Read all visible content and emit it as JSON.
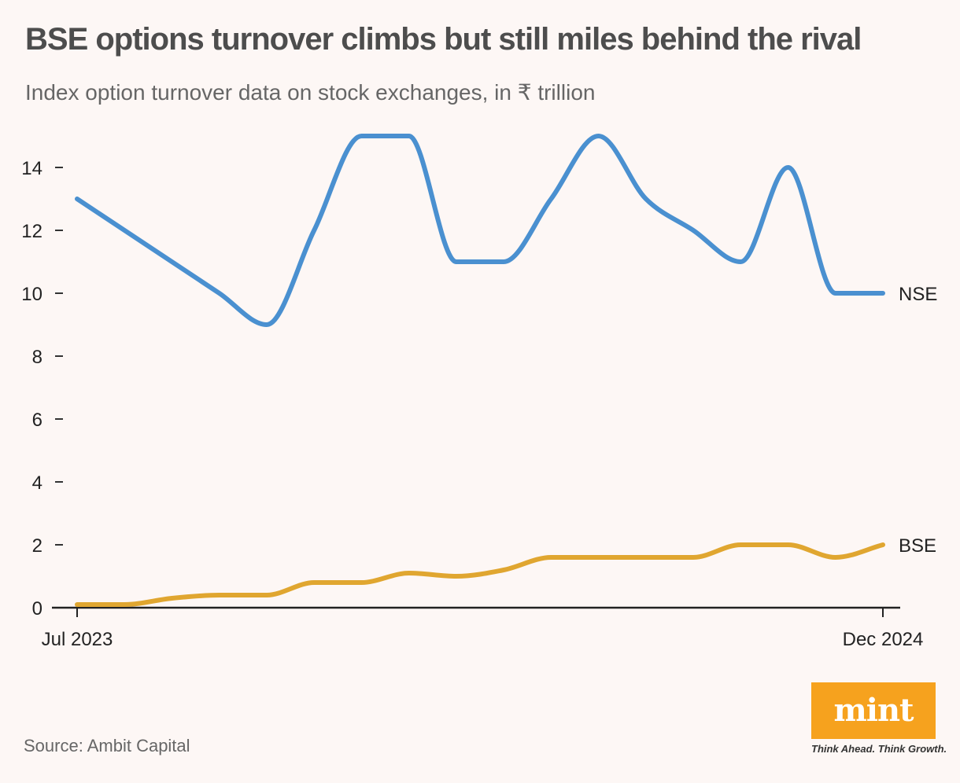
{
  "title": "BSE options turnover climbs but still miles behind the rival",
  "subtitle": "Index option turnover data on stock exchanges, in ₹ trillion",
  "source": "Source: Ambit Capital",
  "brand": {
    "logo_text": "mint",
    "tagline": "Think Ahead. Think Growth.",
    "logo_color": "#f6a21e"
  },
  "chart_data": {
    "type": "line",
    "title": "BSE options turnover climbs but still miles behind the rival",
    "subtitle": "Index option turnover data on stock exchanges, in ₹ trillion",
    "xlabel": "",
    "ylabel": "",
    "x": [
      "Jul 2023",
      "Aug 2023",
      "Sep 2023",
      "Oct 2023",
      "Nov 2023",
      "Dec 2023",
      "Jan 2024",
      "Feb 2024",
      "Mar 2024",
      "Apr 2024",
      "May 2024",
      "Jun 2024",
      "Jul 2024",
      "Aug 2024",
      "Sep 2024",
      "Oct 2024",
      "Nov 2024",
      "Dec 2024"
    ],
    "x_tick_labels": [
      "Jul 2023",
      "Dec 2024"
    ],
    "ylim": [
      0,
      15
    ],
    "y_ticks": [
      0,
      2,
      4,
      6,
      8,
      10,
      12,
      14
    ],
    "grid": false,
    "series": [
      {
        "name": "NSE",
        "color": "#4a90d0",
        "values": [
          13,
          12,
          11,
          10,
          9,
          12,
          15,
          15,
          11,
          11,
          13,
          15,
          13,
          12,
          11,
          14,
          10,
          10
        ]
      },
      {
        "name": "BSE",
        "color": "#e0a630",
        "values": [
          0.1,
          0.1,
          0.3,
          0.4,
          0.4,
          0.8,
          0.8,
          1.1,
          1.0,
          1.2,
          1.6,
          1.6,
          1.6,
          1.6,
          2.0,
          2.0,
          1.6,
          2.0
        ]
      }
    ]
  }
}
